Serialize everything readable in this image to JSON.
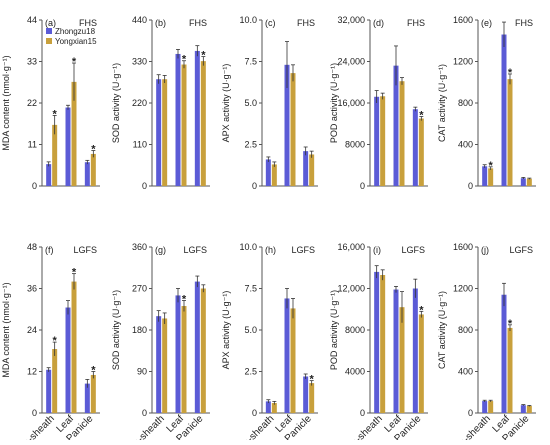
{
  "legend": {
    "items": [
      {
        "name": "Zhongzu18",
        "color": "#5b5bd6"
      },
      {
        "name": "Yongxian15",
        "color": "#c8a03c"
      }
    ]
  },
  "chart_data": [
    {
      "type": "bar",
      "panel_label": "(a)",
      "condition": "FHS",
      "ylabel": "MDA content (nmol·g⁻¹)",
      "ylim": [
        0,
        44
      ],
      "yticks": [
        0,
        11,
        22,
        33,
        44
      ],
      "ytick_labels": [
        "0",
        "11",
        "22",
        "33",
        "44"
      ],
      "categories": [
        "Stem-sheath",
        "Leaf",
        "Panicle"
      ],
      "show_xlabels": false,
      "show_legend": true,
      "series": [
        {
          "name": "Zhongzu18",
          "values": [
            5.8,
            20.8,
            6.3
          ],
          "errors": [
            0.6,
            0.6,
            0.5
          ],
          "stars": [
            false,
            false,
            false
          ]
        },
        {
          "name": "Yongxian15",
          "values": [
            16.2,
            27.6,
            8.5
          ],
          "errors": [
            2.5,
            5.0,
            0.9
          ],
          "stars": [
            true,
            true,
            true
          ]
        }
      ]
    },
    {
      "type": "bar",
      "panel_label": "(b)",
      "condition": "FHS",
      "ylabel": "SOD activity (U·g⁻¹)",
      "ylim": [
        0,
        440
      ],
      "yticks": [
        0,
        110,
        220,
        330,
        440
      ],
      "ytick_labels": [
        "0",
        "110",
        "220",
        "330",
        "440"
      ],
      "categories": [
        "Stem-sheath",
        "Leaf",
        "Panicle"
      ],
      "show_xlabels": false,
      "show_legend": false,
      "series": [
        {
          "name": "Zhongzu18",
          "values": [
            283,
            350,
            358
          ],
          "errors": [
            12,
            12,
            14
          ],
          "stars": [
            false,
            false,
            false
          ]
        },
        {
          "name": "Yongxian15",
          "values": [
            283,
            322,
            331
          ],
          "errors": [
            10,
            10,
            12
          ],
          "stars": [
            false,
            true,
            true
          ]
        }
      ]
    },
    {
      "type": "bar",
      "panel_label": "(c)",
      "condition": "FHS",
      "ylabel": "APX activity (U·g⁻¹)",
      "ylim": [
        0,
        10
      ],
      "yticks": [
        0,
        2.5,
        5.0,
        7.5,
        10.0
      ],
      "ytick_labels": [
        "0",
        "2.5",
        "5.0",
        "7.5",
        "10.0"
      ],
      "categories": [
        "Stem-sheath",
        "Leaf",
        "Panicle"
      ],
      "show_xlabels": false,
      "show_legend": false,
      "series": [
        {
          "name": "Zhongzu18",
          "values": [
            1.6,
            7.3,
            2.1
          ],
          "errors": [
            0.15,
            1.4,
            0.25
          ],
          "stars": [
            false,
            false,
            false
          ]
        },
        {
          "name": "Yongxian15",
          "values": [
            1.3,
            6.8,
            1.9
          ],
          "errors": [
            0.15,
            0.5,
            0.2
          ],
          "stars": [
            false,
            false,
            false
          ]
        }
      ]
    },
    {
      "type": "bar",
      "panel_label": "(d)",
      "condition": "FHS",
      "ylabel": "POD activity (U·g⁻¹)",
      "ylim": [
        0,
        32000
      ],
      "yticks": [
        0,
        8000,
        16000,
        24000,
        32000
      ],
      "ytick_labels": [
        "0",
        "8000",
        "16,000",
        "24,000",
        "32,000"
      ],
      "categories": [
        "Stem-sheath",
        "Leaf",
        "Panicle"
      ],
      "show_xlabels": false,
      "show_legend": false,
      "series": [
        {
          "name": "Zhongzu18",
          "values": [
            17200,
            23200,
            14800
          ],
          "errors": [
            1200,
            3800,
            400
          ],
          "stars": [
            false,
            false,
            false
          ]
        },
        {
          "name": "Yongxian15",
          "values": [
            17300,
            20200,
            13000
          ],
          "errors": [
            600,
            700,
            400
          ],
          "stars": [
            false,
            false,
            true
          ]
        }
      ]
    },
    {
      "type": "bar",
      "panel_label": "(e)",
      "condition": "FHS",
      "ylabel": "CAT activity (U·g⁻¹)",
      "ylim": [
        0,
        1600
      ],
      "yticks": [
        0,
        400,
        800,
        1200,
        1600
      ],
      "ytick_labels": [
        "0",
        "400",
        "800",
        "1200",
        "1600"
      ],
      "categories": [
        "Stem-sheath",
        "Leaf",
        "Panicle"
      ],
      "show_xlabels": false,
      "show_legend": false,
      "series": [
        {
          "name": "Zhongzu18",
          "values": [
            190,
            1460,
            75
          ],
          "errors": [
            15,
            120,
            8
          ],
          "stars": [
            false,
            false,
            false
          ]
        },
        {
          "name": "Yongxian15",
          "values": [
            170,
            1030,
            70
          ],
          "errors": [
            15,
            50,
            6
          ],
          "stars": [
            true,
            true,
            false
          ]
        }
      ]
    },
    {
      "type": "bar",
      "panel_label": "(f)",
      "condition": "LGFS",
      "ylabel": "MDA content (nmol·g⁻¹)",
      "ylim": [
        0,
        48
      ],
      "yticks": [
        0,
        12,
        24,
        36,
        48
      ],
      "ytick_labels": [
        "0",
        "12",
        "24",
        "36",
        "48"
      ],
      "categories": [
        "Stem-sheath",
        "Leaf",
        "Panicle"
      ],
      "show_xlabels": true,
      "show_legend": false,
      "series": [
        {
          "name": "Zhongzu18",
          "values": [
            12.5,
            30.5,
            8.5
          ],
          "errors": [
            0.6,
            2.0,
            1.2
          ],
          "stars": [
            false,
            false,
            false
          ]
        },
        {
          "name": "Yongxian15",
          "values": [
            18.5,
            38.0,
            11.0
          ],
          "errors": [
            2.0,
            2.3,
            1.0
          ],
          "stars": [
            true,
            true,
            true
          ]
        }
      ]
    },
    {
      "type": "bar",
      "panel_label": "(g)",
      "condition": "LGFS",
      "ylabel": "SOD activity (U·g⁻¹)",
      "ylim": [
        0,
        360
      ],
      "yticks": [
        0,
        90,
        180,
        270,
        360
      ],
      "ytick_labels": [
        "0",
        "90",
        "180",
        "270",
        "360"
      ],
      "categories": [
        "Stem-sheath",
        "Leaf",
        "Panicle"
      ],
      "show_xlabels": true,
      "show_legend": false,
      "series": [
        {
          "name": "Zhongzu18",
          "values": [
            210,
            255,
            285
          ],
          "errors": [
            12,
            15,
            12
          ],
          "stars": [
            false,
            false,
            false
          ]
        },
        {
          "name": "Yongxian15",
          "values": [
            205,
            232,
            270
          ],
          "errors": [
            12,
            12,
            8
          ],
          "stars": [
            false,
            true,
            false
          ]
        }
      ]
    },
    {
      "type": "bar",
      "panel_label": "(h)",
      "condition": "LGFS",
      "ylabel": "APX activity (U·g⁻¹)",
      "ylim": [
        0,
        10
      ],
      "yticks": [
        0,
        2.5,
        5.0,
        7.5,
        10.0
      ],
      "ytick_labels": [
        "0",
        "2.5",
        "5.0",
        "7.5",
        "10.0"
      ],
      "categories": [
        "Stem-sheath",
        "Leaf",
        "Panicle"
      ],
      "show_xlabels": true,
      "show_legend": false,
      "series": [
        {
          "name": "Zhongzu18",
          "values": [
            0.7,
            6.9,
            2.2
          ],
          "errors": [
            0.1,
            0.6,
            0.15
          ],
          "stars": [
            false,
            false,
            false
          ]
        },
        {
          "name": "Yongxian15",
          "values": [
            0.6,
            6.3,
            1.8
          ],
          "errors": [
            0.1,
            0.6,
            0.15
          ],
          "stars": [
            false,
            false,
            true
          ]
        }
      ]
    },
    {
      "type": "bar",
      "panel_label": "(i)",
      "condition": "LGFS",
      "ylabel": "POD activity (U·g⁻¹)",
      "ylim": [
        0,
        16000
      ],
      "yticks": [
        0,
        4000,
        8000,
        12000,
        16000
      ],
      "ytick_labels": [
        "0",
        "4000",
        "8000",
        "12,000",
        "16,000"
      ],
      "categories": [
        "Stem-sheath",
        "Leaf",
        "Panicle"
      ],
      "show_xlabels": true,
      "show_legend": false,
      "series": [
        {
          "name": "Zhongzu18",
          "values": [
            13600,
            11900,
            12000
          ],
          "errors": [
            600,
            300,
            900
          ],
          "stars": [
            false,
            false,
            false
          ]
        },
        {
          "name": "Yongxian15",
          "values": [
            13300,
            10200,
            9500
          ],
          "errors": [
            500,
            1500,
            300
          ],
          "stars": [
            false,
            false,
            true
          ]
        }
      ]
    },
    {
      "type": "bar",
      "panel_label": "(j)",
      "condition": "LGFS",
      "ylabel": "CAT activity (U·g⁻¹)",
      "ylim": [
        0,
        1600
      ],
      "yticks": [
        0,
        400,
        800,
        1200,
        1600
      ],
      "ytick_labels": [
        "0",
        "400",
        "800",
        "1200",
        "1600"
      ],
      "categories": [
        "Stem-sheath",
        "Leaf",
        "Panicle"
      ],
      "show_xlabels": true,
      "show_legend": false,
      "series": [
        {
          "name": "Zhongzu18",
          "values": [
            115,
            1140,
            75
          ],
          "errors": [
            8,
            110,
            6
          ],
          "stars": [
            false,
            false,
            false
          ]
        },
        {
          "name": "Yongxian15",
          "values": [
            115,
            820,
            68
          ],
          "errors": [
            8,
            30,
            5
          ],
          "stars": [
            false,
            true,
            false
          ]
        }
      ]
    }
  ]
}
